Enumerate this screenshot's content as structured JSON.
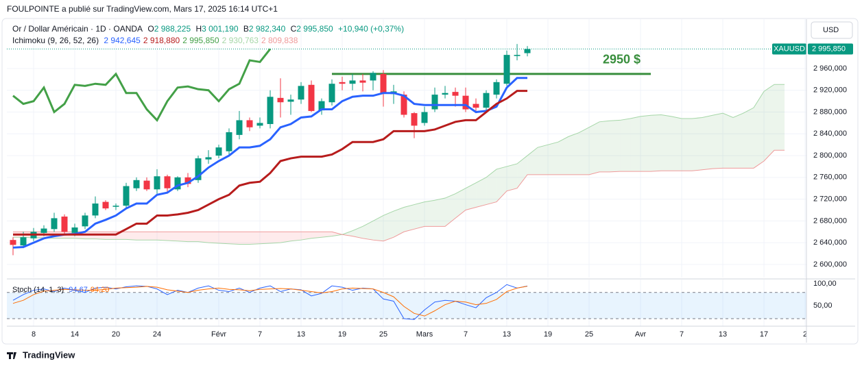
{
  "header": "FOULPOINTE a publié sur TradingView.com, Mars 17, 2025 16:14 UTC+1",
  "currency": "USD",
  "symbol_tag": "XAUUSD",
  "footer": "TradingView",
  "chart_data": [
    {
      "type": "candlestick",
      "legend": {
        "symbol": "Or / Dollar Américain · 1D · OANDA",
        "o_label": "O",
        "open": "2 988,225",
        "h_label": "H",
        "high": "3 001,190",
        "b_label": "B",
        "low": "2 982,340",
        "c_label": "C",
        "close": "2 995,850",
        "change": "+10,940 (+0,37%)"
      },
      "indicator_legend": {
        "name": "Ichimoku (9, 26, 52, 26)",
        "values": [
          "2 942,645",
          "2 918,880",
          "2 995,850",
          "2 930,763",
          "2 809,838"
        ]
      },
      "up_color": "#089981",
      "down_color": "#f23645",
      "open": [
        2645,
        2635,
        2648,
        2658,
        2665,
        2688,
        2658,
        2670,
        2690,
        2715,
        2706,
        2708,
        2740,
        2754,
        2738,
        2762,
        2738,
        2760,
        2755,
        2793,
        2800,
        2808,
        2838,
        2865,
        2855,
        2858,
        2906,
        2899,
        2903,
        2930,
        2883,
        2898,
        2935,
        2932,
        2938,
        2938,
        2950,
        2913,
        2912,
        2878,
        2860,
        2885,
        2912,
        2917,
        2910,
        2895,
        2888,
        2912,
        2932,
        2983,
        2988.225
      ],
      "high": [
        2650,
        2660,
        2667,
        2672,
        2695,
        2692,
        2675,
        2695,
        2725,
        2718,
        2712,
        2750,
        2760,
        2760,
        2775,
        2765,
        2762,
        2768,
        2800,
        2810,
        2820,
        2850,
        2882,
        2870,
        2870,
        2920,
        2942,
        2912,
        2935,
        2938,
        2905,
        2940,
        2945,
        2950,
        2950,
        2955,
        2957,
        2930,
        2918,
        2880,
        2890,
        2925,
        2928,
        2925,
        2925,
        2905,
        2920,
        2940,
        2993,
        3005,
        3001.19
      ],
      "low": [
        2617,
        2630,
        2643,
        2652,
        2660,
        2655,
        2652,
        2665,
        2685,
        2700,
        2700,
        2705,
        2735,
        2735,
        2730,
        2733,
        2735,
        2742,
        2750,
        2785,
        2795,
        2800,
        2830,
        2845,
        2850,
        2850,
        2870,
        2875,
        2895,
        2880,
        2875,
        2892,
        2920,
        2920,
        2918,
        2920,
        2890,
        2895,
        2870,
        2832,
        2855,
        2880,
        2905,
        2890,
        2880,
        2878,
        2880,
        2905,
        2928,
        2975,
        2982.34
      ],
      "close": [
        2636,
        2650,
        2660,
        2666,
        2685,
        2660,
        2668,
        2690,
        2712,
        2703,
        2708,
        2744,
        2755,
        2738,
        2762,
        2740,
        2760,
        2748,
        2795,
        2797,
        2815,
        2843,
        2865,
        2852,
        2860,
        2908,
        2898,
        2903,
        2928,
        2882,
        2900,
        2932,
        2932,
        2938,
        2934,
        2952,
        2915,
        2918,
        2875,
        2855,
        2880,
        2912,
        2915,
        2910,
        2885,
        2888,
        2915,
        2935,
        2985,
        2985,
        2995.85
      ],
      "series": [
        {
          "color": "#2962ff",
          "values": [
            2631,
            2632,
            2640,
            2648,
            2652,
            2655,
            2656,
            2660,
            2675,
            2682,
            2690,
            2703,
            2712,
            2712,
            2728,
            2732,
            2745,
            2750,
            2762,
            2778,
            2790,
            2800,
            2815,
            2815,
            2818,
            2830,
            2852,
            2858,
            2870,
            2872,
            2885,
            2885,
            2900,
            2908,
            2910,
            2910,
            2915,
            2915,
            2910,
            2895,
            2893,
            2893,
            2893,
            2893,
            2893,
            2880,
            2882,
            2890,
            2925,
            2942.645,
            2942.645
          ]
        },
        {
          "color": "#b71c1c",
          "values": [
            2655,
            2655,
            2655,
            2655,
            2655,
            2655,
            2655,
            2655,
            2655,
            2655,
            2655,
            2665,
            2675,
            2675,
            2690,
            2690,
            2692,
            2695,
            2700,
            2710,
            2720,
            2728,
            2745,
            2750,
            2752,
            2768,
            2790,
            2795,
            2798,
            2798,
            2798,
            2802,
            2812,
            2825,
            2825,
            2825,
            2830,
            2845,
            2845,
            2845,
            2845,
            2848,
            2855,
            2862,
            2865,
            2865,
            2880,
            2895,
            2905,
            2918.88,
            2918.88
          ]
        },
        {
          "color": "#43a047",
          "values": [
            2910,
            2895,
            2900,
            2925,
            2880,
            2895,
            2930,
            2928,
            2932,
            2930,
            2950,
            2915,
            2915,
            2885,
            2865,
            2900,
            2925,
            2927,
            2922,
            2920,
            2900,
            2922,
            2932,
            2975,
            2972,
            2995.85
          ]
        }
      ],
      "span_a": {
        "color": "#a5d6a7",
        "values": [
          2650,
          2650,
          2649,
          2649,
          2648,
          2648,
          2648,
          2647,
          2647,
          2646,
          2646,
          2646,
          2645,
          2645,
          2645,
          2644,
          2643,
          2642,
          2642,
          2640,
          2639,
          2638,
          2637,
          2637,
          2638,
          2639,
          2640,
          2643,
          2645,
          2648,
          2650,
          2652,
          2655,
          2662,
          2670,
          2680,
          2690,
          2698,
          2705,
          2710,
          2715,
          2718,
          2722,
          2730,
          2740,
          2750,
          2760,
          2775,
          2780,
          2785,
          2800,
          2815,
          2820,
          2825,
          2835,
          2842,
          2852,
          2862,
          2864,
          2865,
          2868,
          2872,
          2874,
          2875,
          2872,
          2868,
          2868,
          2870,
          2874,
          2878,
          2870,
          2878,
          2888,
          2918,
          2930.763,
          2930.763
        ]
      },
      "span_b": {
        "color": "#ef9a9a",
        "values": [
          2660,
          2660,
          2660,
          2660,
          2660,
          2660,
          2660,
          2660,
          2660,
          2660,
          2660,
          2660,
          2660,
          2660,
          2660,
          2660,
          2660,
          2660,
          2660,
          2660,
          2660,
          2660,
          2660,
          2660,
          2660,
          2660,
          2660,
          2660,
          2660,
          2660,
          2660,
          2660,
          2655,
          2652,
          2648,
          2645,
          2643,
          2650,
          2660,
          2665,
          2670,
          2670,
          2670,
          2685,
          2700,
          2705,
          2710,
          2715,
          2735,
          2740,
          2765,
          2765,
          2765,
          2765,
          2765,
          2765,
          2765,
          2770,
          2770,
          2771,
          2771,
          2771,
          2771,
          2772,
          2772,
          2772,
          2772,
          2774,
          2776,
          2777,
          2777,
          2777,
          2777,
          2790,
          2809.838,
          2809.838
        ]
      },
      "cloud_up": "rgba(67,160,71,0.1)",
      "cloud_down": "rgba(242,54,69,0.1)",
      "annotations": [
        {
          "text": "2950 $",
          "value": 2950,
          "x": [
            31,
            62
          ],
          "color": "#388e3c"
        }
      ],
      "xlim": [
        -0.6,
        77.13
      ],
      "ylim": [
        2576,
        3050.6
      ],
      "yticks": [
        {
          "value": 2600,
          "label": "2 600,000"
        },
        {
          "value": 2640,
          "label": "2 640,000"
        },
        {
          "value": 2680,
          "label": "2 680,000"
        },
        {
          "value": 2720,
          "label": "2 720,000"
        },
        {
          "value": 2760,
          "label": "2 760,000"
        },
        {
          "value": 2800,
          "label": "2 800,000"
        },
        {
          "value": 2840,
          "label": "2 840,000"
        },
        {
          "value": 2880,
          "label": "2 880,000"
        },
        {
          "value": 2920,
          "label": "2 920,000"
        },
        {
          "value": 2960,
          "label": "2 960,000"
        }
      ],
      "grid": true
    },
    {
      "type": "line",
      "legend": {
        "name": "Stoch (14, 1, 3)",
        "values": [
          "94,67",
          "94,20"
        ]
      },
      "series": [
        {
          "color": "#2962ff",
          "values": [
            62,
            75,
            85,
            88,
            82,
            90,
            85,
            80,
            90,
            92,
            88,
            93,
            95,
            94,
            88,
            75,
            85,
            80,
            90,
            95,
            85,
            82,
            90,
            80,
            90,
            95,
            82,
            88,
            86,
            72,
            78,
            95,
            92,
            85,
            90,
            88,
            65,
            60,
            20,
            18,
            40,
            58,
            62,
            60,
            52,
            45,
            68,
            80,
            98,
            90,
            94.67
          ]
        },
        {
          "color": "#ff6d00",
          "values": [
            55,
            62,
            75,
            83,
            85,
            87,
            86,
            85,
            85,
            87,
            90,
            91,
            92,
            94,
            92,
            86,
            83,
            80,
            85,
            88,
            90,
            87,
            86,
            84,
            87,
            88,
            89,
            88,
            85,
            82,
            79,
            82,
            88,
            90,
            89,
            88,
            80,
            70,
            48,
            32,
            26,
            38,
            52,
            60,
            58,
            52,
            55,
            64,
            82,
            90,
            94.2
          ]
        }
      ],
      "band": [
        20,
        80
      ],
      "band_color": "rgba(33,150,243,0.1)",
      "xlim": [
        -0.6,
        77.13
      ],
      "ylim": [
        2.7,
        109.4
      ],
      "yticks": [
        {
          "value": 100,
          "label": "100,00"
        },
        {
          "value": 50,
          "label": "50,00"
        }
      ],
      "xticks": [
        {
          "value": 2,
          "label": "8"
        },
        {
          "value": 6,
          "label": "14"
        },
        {
          "value": 10,
          "label": "20"
        },
        {
          "value": 14,
          "label": "24"
        },
        {
          "value": 20,
          "label": "Févr"
        },
        {
          "value": 24,
          "label": "7"
        },
        {
          "value": 28,
          "label": "13"
        },
        {
          "value": 32,
          "label": "19"
        },
        {
          "value": 36,
          "label": "25"
        },
        {
          "value": 40,
          "label": "Mars"
        },
        {
          "value": 44,
          "label": "7"
        },
        {
          "value": 48,
          "label": "13"
        },
        {
          "value": 52,
          "label": "19"
        },
        {
          "value": 56,
          "label": "25"
        },
        {
          "value": 61,
          "label": "Avr"
        },
        {
          "value": 65,
          "label": "7"
        },
        {
          "value": 69,
          "label": "13"
        },
        {
          "value": 73,
          "label": "17"
        },
        {
          "value": 77,
          "label": "2"
        }
      ]
    }
  ]
}
